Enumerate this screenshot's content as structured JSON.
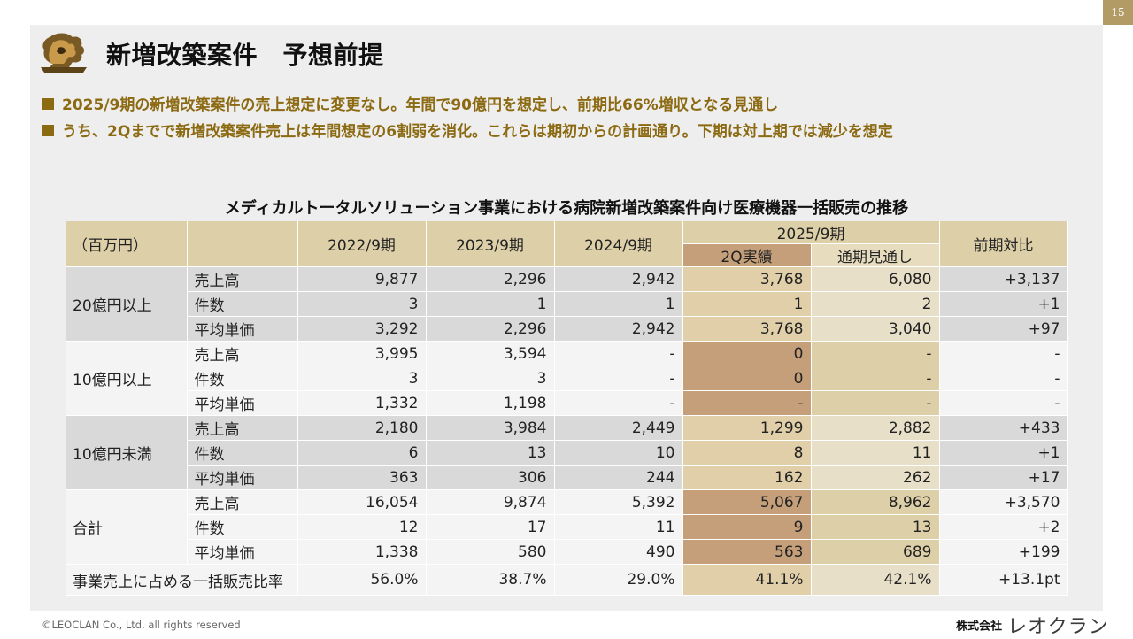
{
  "page_number": "15",
  "title": "新増改築案件　予想前提",
  "bullets": [
    "2025/9期の新増改築案件の売上想定に変更なし。年間で90億円を想定し、前期比66%増収となる見通し",
    "うち、2Qまでで新増改築案件売上は年間想定の6割弱を消化。これらは期初からの計画通り。下期は対上期では減少を想定"
  ],
  "table": {
    "title": "メディカルトータルソリューション事業における病院新増改築案件向け医療機器一括販売の推移",
    "unit": "（百万円）",
    "headers": {
      "y2022": "2022/9期",
      "y2023": "2023/9期",
      "y2024": "2024/9期",
      "y2025": "2025/9期",
      "q2": "2Q実績",
      "fy": "通期見通し",
      "yoy": "前期対比"
    },
    "groups": [
      {
        "label": "20億円以上",
        "rows": [
          {
            "metric": "売上高",
            "v": [
              "9,877",
              "2,296",
              "2,942",
              "3,768",
              "6,080",
              "+3,137"
            ]
          },
          {
            "metric": "件数",
            "v": [
              "3",
              "1",
              "1",
              "1",
              "2",
              "+1"
            ]
          },
          {
            "metric": "平均単価",
            "v": [
              "3,292",
              "2,296",
              "2,942",
              "3,768",
              "3,040",
              "+97"
            ]
          }
        ]
      },
      {
        "label": "10億円以上",
        "rows": [
          {
            "metric": "売上高",
            "v": [
              "3,995",
              "3,594",
              "-",
              "0",
              "-",
              "-"
            ]
          },
          {
            "metric": "件数",
            "v": [
              "3",
              "3",
              "-",
              "0",
              "-",
              "-"
            ]
          },
          {
            "metric": "平均単価",
            "v": [
              "1,332",
              "1,198",
              "-",
              "-",
              "-",
              "-"
            ]
          }
        ]
      },
      {
        "label": "10億円未満",
        "rows": [
          {
            "metric": "売上高",
            "v": [
              "2,180",
              "3,984",
              "2,449",
              "1,299",
              "2,882",
              "+433"
            ]
          },
          {
            "metric": "件数",
            "v": [
              "6",
              "13",
              "10",
              "8",
              "11",
              "+1"
            ]
          },
          {
            "metric": "平均単価",
            "v": [
              "363",
              "306",
              "244",
              "162",
              "262",
              "+17"
            ]
          }
        ]
      },
      {
        "label": "合計",
        "rows": [
          {
            "metric": "売上高",
            "v": [
              "16,054",
              "9,874",
              "5,392",
              "5,067",
              "8,962",
              "+3,570"
            ]
          },
          {
            "metric": "件数",
            "v": [
              "12",
              "17",
              "11",
              "9",
              "13",
              "+2"
            ]
          },
          {
            "metric": "平均単価",
            "v": [
              "1,338",
              "580",
              "490",
              "563",
              "689",
              "+199"
            ]
          }
        ]
      }
    ],
    "ratio_row": {
      "label": "事業売上に占める一括販売比率",
      "v": [
        "56.0%",
        "38.7%",
        "29.0%",
        "41.1%",
        "42.1%",
        "+13.1pt"
      ]
    }
  },
  "footer": "©LEOCLAN Co., Ltd. all rights reserved",
  "company": {
    "prefix": "株式会社",
    "name": "レオクラン"
  },
  "colors": {
    "accent": "#8c6a12",
    "header": "#ddd0a9",
    "q2_dark": "#c49f7a",
    "gray": "#d9d9d9"
  },
  "icons": {
    "logo": "lion-logo-icon"
  }
}
